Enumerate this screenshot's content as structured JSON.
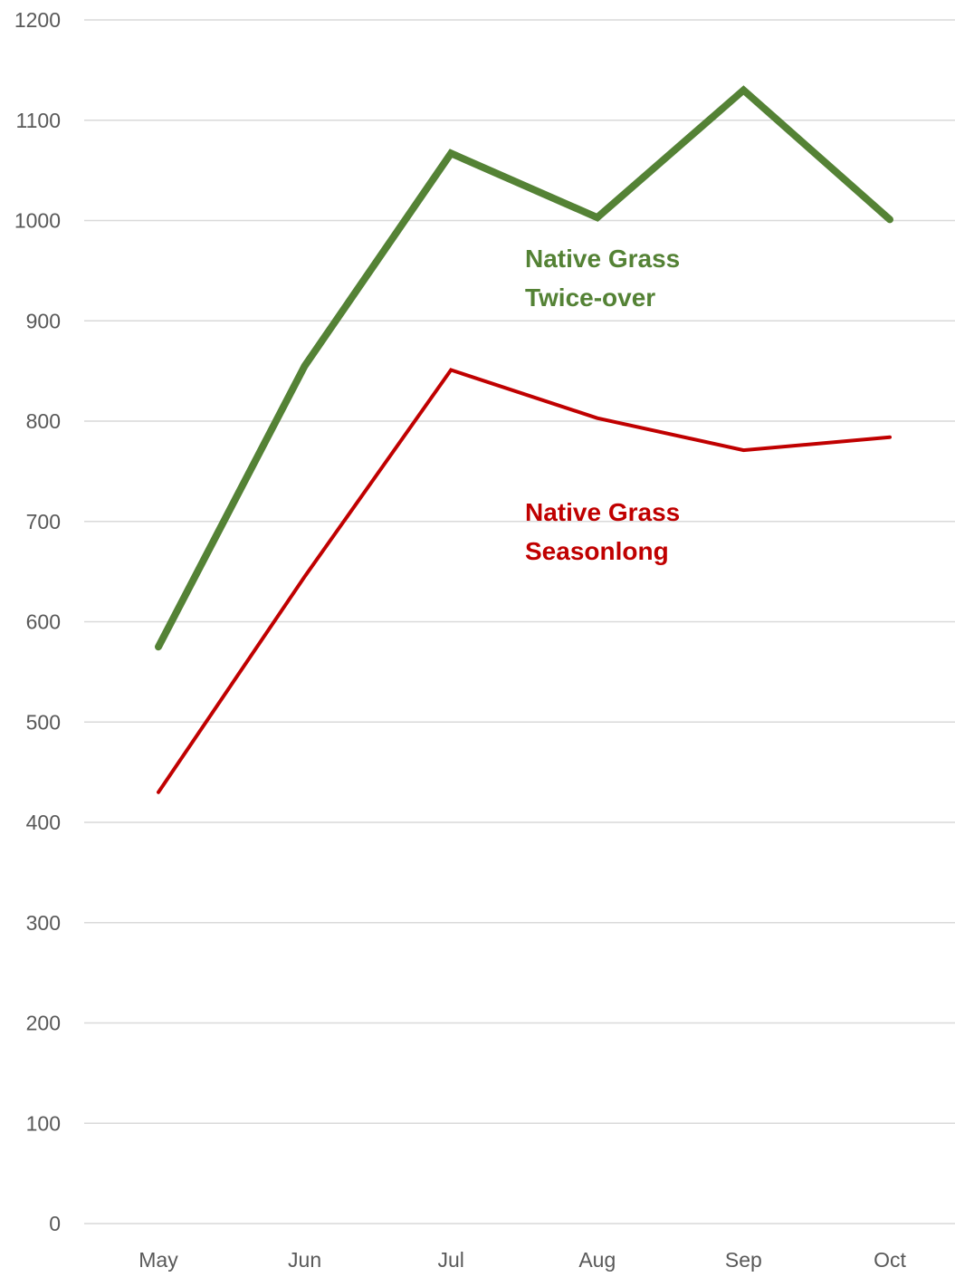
{
  "chart_data": {
    "type": "line",
    "categories": [
      "May",
      "Jun",
      "Jul",
      "Aug",
      "Sep",
      "Oct"
    ],
    "series": [
      {
        "label_lines": [
          "Native Grass",
          "Twice-over"
        ],
        "color": "#548235",
        "values": [
          575,
          855,
          1067,
          1003,
          1130,
          1001
        ]
      },
      {
        "label_lines": [
          "Native Grass",
          "Seasonlong"
        ],
        "color": "#C00000",
        "values": [
          430,
          645,
          851,
          803,
          771,
          784
        ]
      }
    ],
    "y_ticks": [
      "0",
      "100",
      "200",
      "300",
      "400",
      "500",
      "600",
      "700",
      "800",
      "900",
      "1000",
      "1100",
      "1200"
    ],
    "ylim": [
      0,
      1200
    ],
    "grid": true,
    "gridline_color": "#D9D9D9"
  }
}
